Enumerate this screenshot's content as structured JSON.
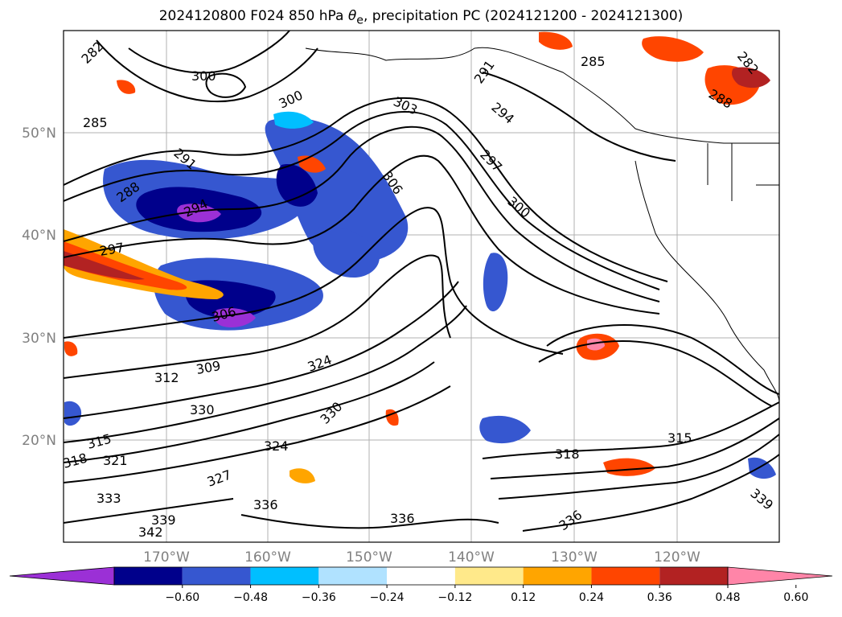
{
  "title": {
    "text": "2024120800 F024 850 hPa θe, precipitation PC (2024121200 - 2024121300)",
    "main": "2024120800 F024 850 hPa ",
    "theta": "θ",
    "sub": "e",
    "rest": ", precipitation PC (2024121200 - 2024121300)"
  },
  "axes": {
    "lat_labels": [
      "50°N",
      "40°N",
      "30°N",
      "20°N"
    ],
    "lon_labels": [
      "170°W",
      "160°W",
      "150°W",
      "140°W",
      "130°W",
      "120°W"
    ],
    "grid": true
  },
  "contour_labels": [
    "282",
    "300",
    "285",
    "291",
    "288",
    "294",
    "297",
    "300",
    "303",
    "306",
    "312",
    "309",
    "315",
    "318",
    "321",
    "324",
    "327",
    "330",
    "333",
    "336",
    "339",
    "342",
    "285",
    "288",
    "282",
    "291",
    "294",
    "297",
    "300",
    "306",
    "315",
    "318",
    "324",
    "330",
    "336",
    "336",
    "339"
  ],
  "colorbar": {
    "colors": [
      "#9b30d6",
      "#00008b",
      "#3657d0",
      "#00bfff",
      "#b0e2ff",
      "#ffffff",
      "#ffe98a",
      "#ffa500",
      "#ff4500",
      "#b22222",
      "#ff85a8"
    ],
    "tick_labels": [
      "−0.60",
      "−0.48",
      "−0.36",
      "−0.24",
      "−0.12",
      "0.12",
      "0.24",
      "0.36",
      "0.48",
      "0.60"
    ],
    "extend": "both"
  }
}
